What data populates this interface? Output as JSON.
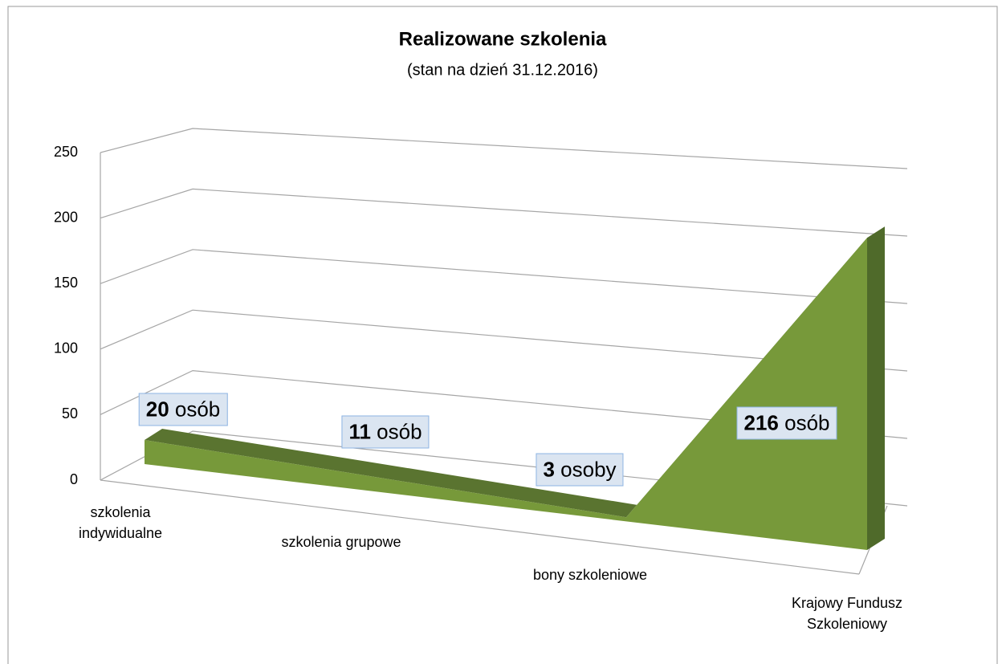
{
  "chart_data": {
    "type": "area",
    "title": "Realizowane szkolenia",
    "subtitle": "(stan na dzień 31.12.2016)",
    "categories": [
      "szkolenia indywidualne",
      "szkolenia grupowe",
      "bony szkoleniowe",
      "Krajowy Fundusz Szkoleniowy"
    ],
    "values": [
      20,
      11,
      3,
      216
    ],
    "value_labels": [
      "20 osób",
      "11 osób",
      "3 osoby",
      "216 osób"
    ],
    "color": "#77993a",
    "ylim": [
      0,
      250
    ],
    "yticks": [
      0,
      50,
      100,
      150,
      200,
      250
    ],
    "grid": true
  }
}
